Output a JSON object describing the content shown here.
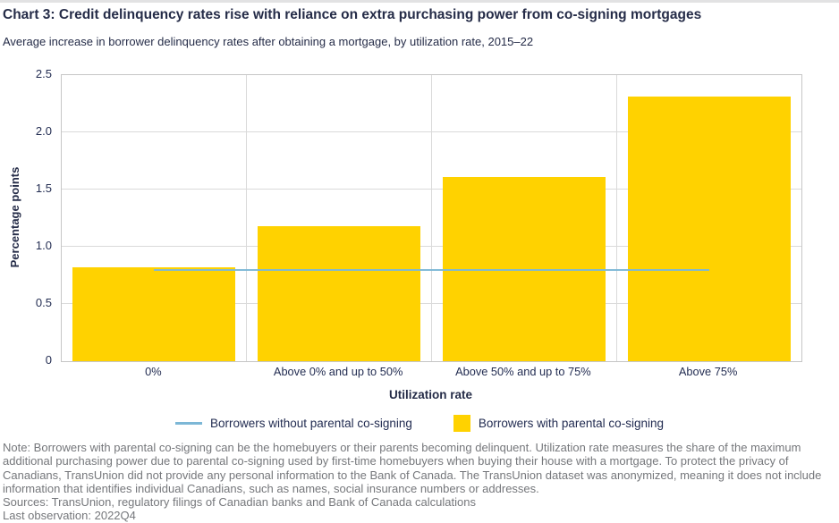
{
  "header": {
    "title": "Chart 3: Credit delinquency rates rise with reliance on extra purchasing power from co-signing mortgages",
    "subtitle": "Average increase in borrower delinquency rates after obtaining a mortgage, by utilization rate, 2015–22"
  },
  "chart_data": {
    "type": "bar",
    "categories": [
      "0%",
      "Above 0% and up to 50%",
      "Above 50% and up to 75%",
      "Above 75%"
    ],
    "series": [
      {
        "name": "Borrowers with parental co-signing",
        "type": "bar",
        "color": "#FFD200",
        "values": [
          0.82,
          1.18,
          1.61,
          2.31
        ]
      },
      {
        "name": "Borrowers without parental co-signing",
        "type": "line",
        "color": "#7CB7D6",
        "values": [
          0.8,
          0.8,
          0.8,
          0.8
        ]
      }
    ],
    "xlabel": "Utilization rate",
    "ylabel": "Percentage points",
    "ylim": [
      0,
      2.5
    ],
    "yticks": [
      "0",
      "0.5",
      "1.0",
      "1.5",
      "2.0",
      "2.5"
    ],
    "grid": true,
    "legend_position": "bottom"
  },
  "legend": {
    "items": [
      {
        "label": "Borrowers without parental co-signing",
        "swatch": "line"
      },
      {
        "label": "Borrowers with parental co-signing",
        "swatch": "square"
      }
    ]
  },
  "footer": {
    "note": "Note: Borrowers with parental co-signing can be the homebuyers or their parents becoming delinquent. Utilization rate measures the share of the maximum additional purchasing power due to parental co-signing used by first-time homebuyers when buying their house with a mortgage. To protect the privacy of Canadians, TransUnion did not provide any personal information to the Bank of Canada. The TransUnion dataset was anonymized, meaning it does not include information that identifies individual Canadians, such as names, social insurance numbers or addresses.",
    "sources": "Sources: TransUnion, regulatory filings of Canadian banks and Bank of Canada calculations",
    "last_observation": "Last observation: 2022Q4"
  },
  "colors": {
    "bar": "#FFD200",
    "line": "#7CB7D6",
    "heading_text": "#252C48",
    "axis_text": "#232D52",
    "note_text": "#75777B",
    "gridline": "#DADADA",
    "plot_border": "#C6C6C6"
  }
}
